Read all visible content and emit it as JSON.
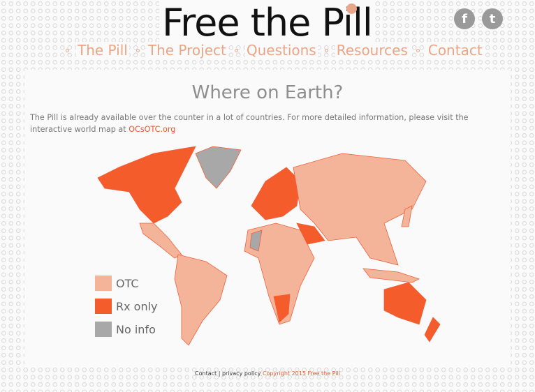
{
  "header": {
    "logo": "Free the Pill",
    "social": [
      {
        "icon": "facebook-icon",
        "glyph": "f"
      },
      {
        "icon": "twitter-icon",
        "glyph": "t"
      }
    ]
  },
  "nav": [
    {
      "label": "The Pill"
    },
    {
      "label": "The Project"
    },
    {
      "label": "Questions"
    },
    {
      "label": "Resources"
    },
    {
      "label": "Contact"
    }
  ],
  "main": {
    "title": "Where on Earth?",
    "intro": "The Pill is already available over the counter in a lot of countries. For more detailed information, please visit the interactive world map at ",
    "link": "OCsOTC.org"
  },
  "legend": [
    {
      "label": "OTC",
      "color": "#f4b49a"
    },
    {
      "label": "Rx only",
      "color": "#f55c2c"
    },
    {
      "label": "No info",
      "color": "#a8a8a8"
    }
  ],
  "footer": {
    "contact": "Contact",
    "sep": "|",
    "privacy": "privacy policy",
    "copyright": "Copyright 2015 Free the Pill"
  }
}
